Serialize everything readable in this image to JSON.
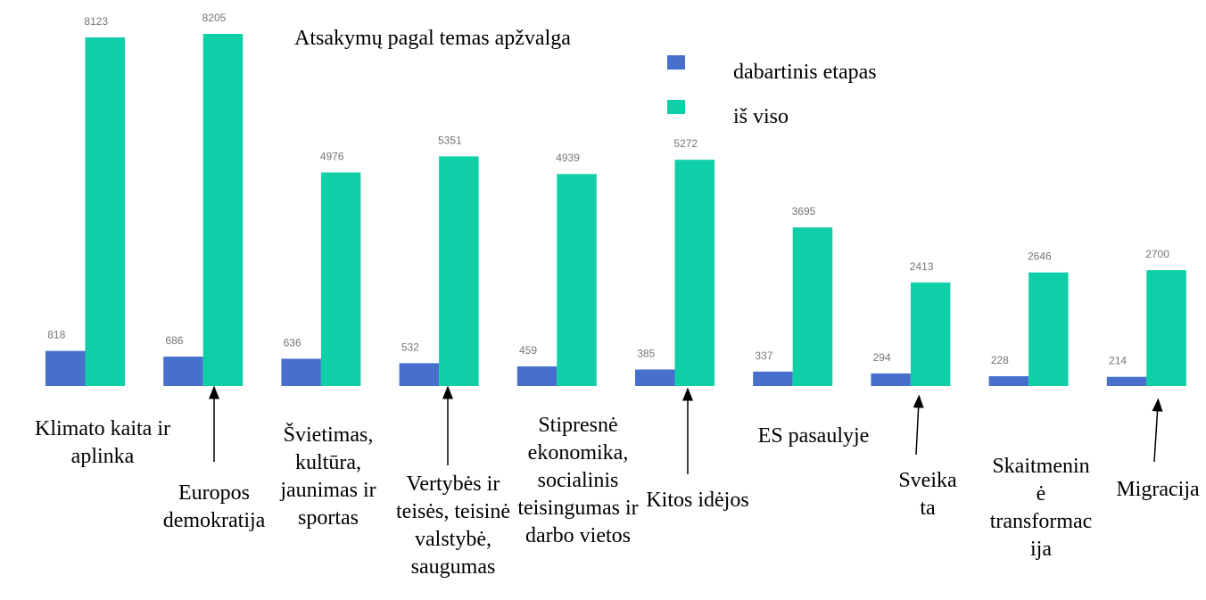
{
  "chart_data": {
    "type": "bar",
    "title": "Atsakymų pagal temas apžvalga",
    "categories": [
      "Klimato kaita ir\naplinka",
      "Europos\ndemokratija",
      "Švietimas,\nkultūra,\njaunimas ir\nsportas",
      "Vertybės ir\nteisės, teisinė\nvalstybė,\nsaugumas",
      "Stipresnė\nekonomika,\nsocialinis\nteisingumas ir\ndarbo vietos",
      "Kitos idėjos",
      "ES pasaulyje",
      "Sveika\nta",
      "Skaitmenin\nė\ntransformac\nija",
      "Migracija"
    ],
    "series": [
      {
        "name": "dabartinis etapas",
        "color": "#4770cc",
        "values": [
          818,
          686,
          636,
          532,
          459,
          385,
          337,
          294,
          228,
          214
        ]
      },
      {
        "name": "iš viso",
        "color": "#0ecfa6",
        "values": [
          8123,
          8205,
          4976,
          5351,
          4939,
          5272,
          3695,
          2413,
          2646,
          2700
        ]
      }
    ],
    "legend": "top-right",
    "grid": false
  }
}
